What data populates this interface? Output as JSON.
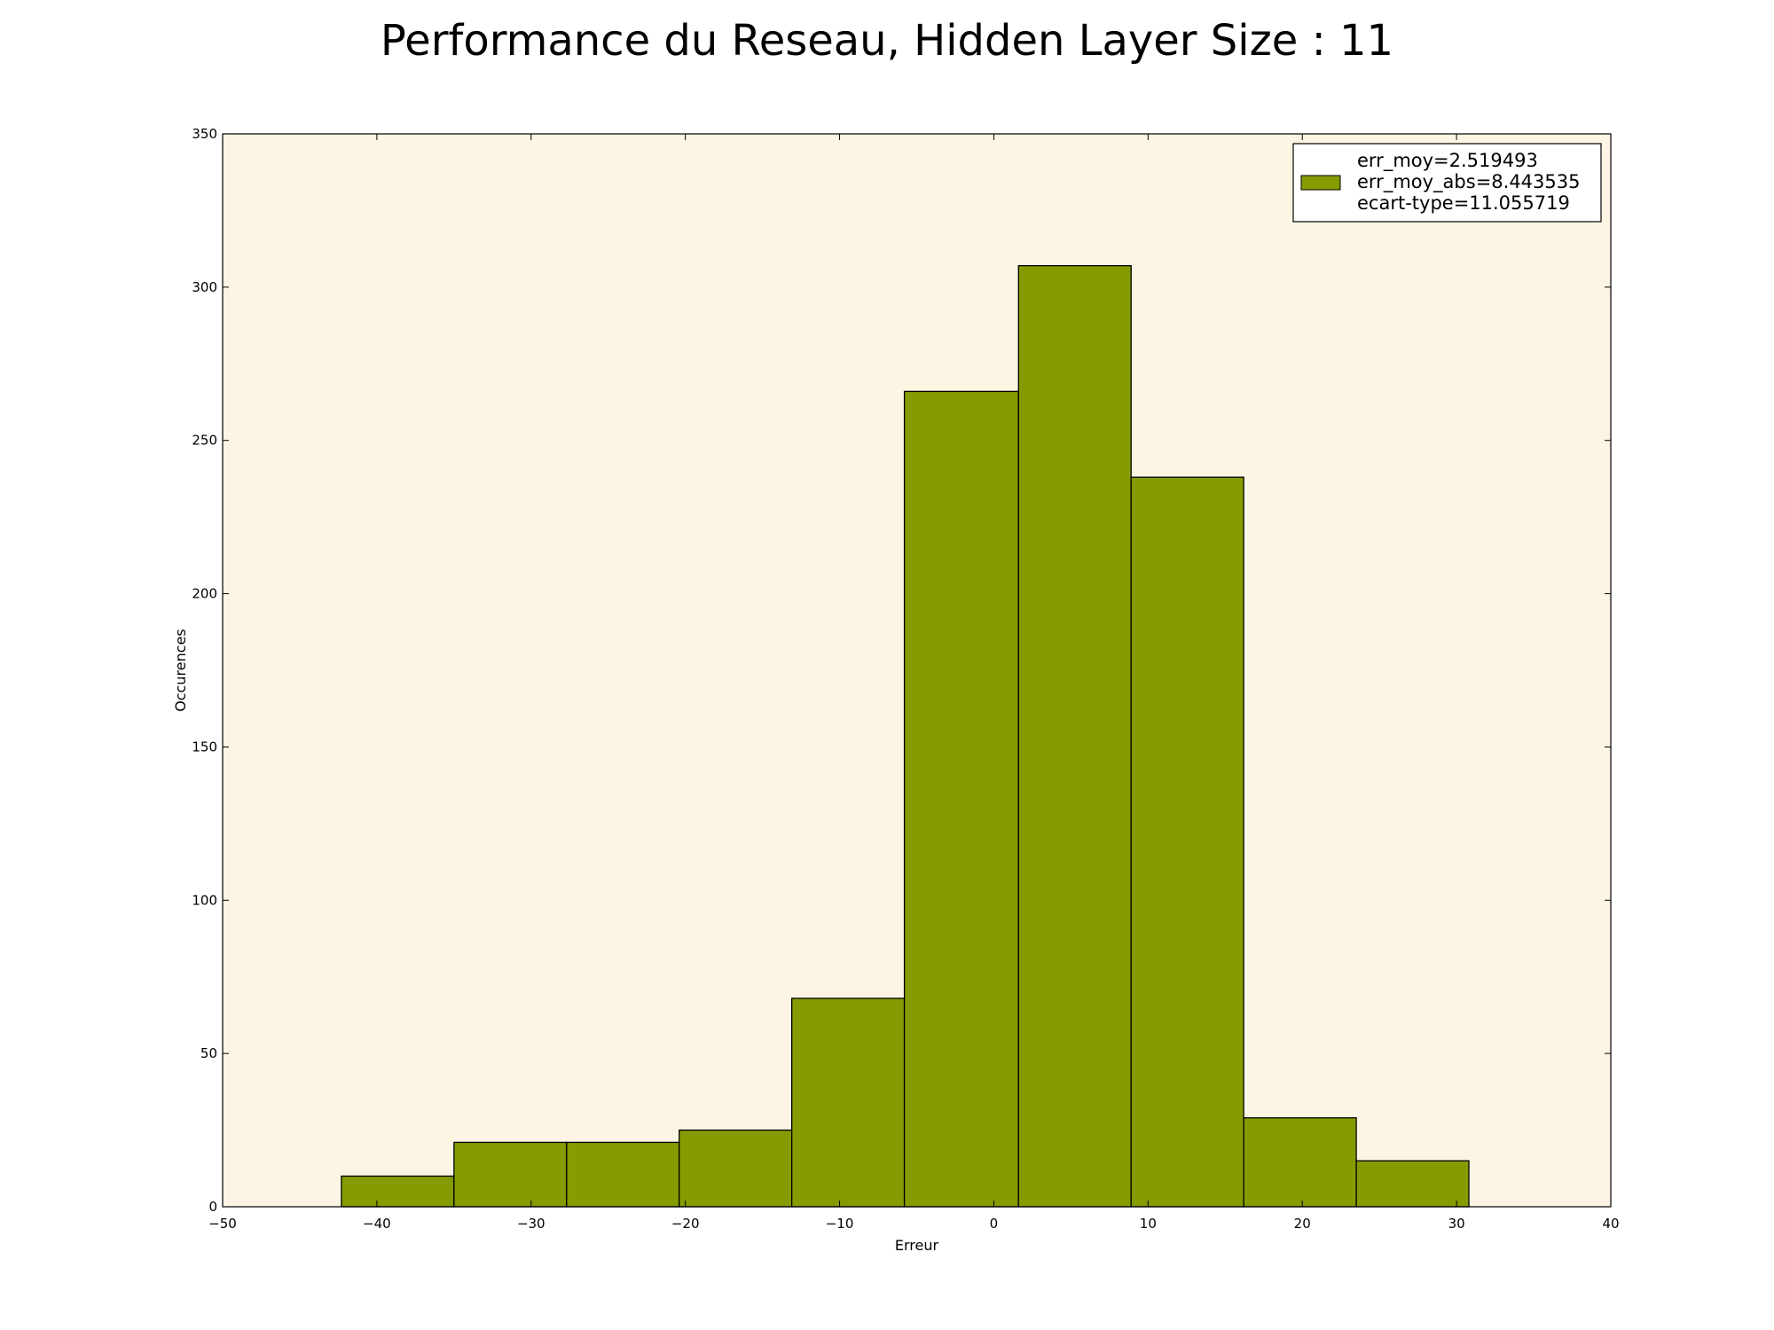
{
  "chart_data": {
    "type": "bar",
    "title": "Performance du Reseau, Hidden Layer Size : 11",
    "xlabel": "Erreur",
    "ylabel": "Occurences",
    "xlim": [
      -50,
      40
    ],
    "ylim": [
      0,
      350
    ],
    "x_ticks": [
      -50,
      -40,
      -30,
      -20,
      -10,
      0,
      10,
      20,
      30,
      40
    ],
    "x_tick_labels": [
      "−50",
      "−40",
      "−30",
      "−20",
      "−10",
      "0",
      "10",
      "20",
      "30",
      "40"
    ],
    "y_ticks": [
      0,
      50,
      100,
      150,
      200,
      250,
      300,
      350
    ],
    "y_tick_labels": [
      "0",
      "50",
      "100",
      "150",
      "200",
      "250",
      "300",
      "350"
    ],
    "bins": [
      {
        "x0": -42.3,
        "x1": -35.0,
        "value": 10
      },
      {
        "x0": -35.0,
        "x1": -27.7,
        "value": 21
      },
      {
        "x0": -27.7,
        "x1": -20.4,
        "value": 21
      },
      {
        "x0": -20.4,
        "x1": -13.1,
        "value": 25
      },
      {
        "x0": -13.1,
        "x1": -5.8,
        "value": 68
      },
      {
        "x0": -5.8,
        "x1": 1.6,
        "value": 266
      },
      {
        "x0": 1.6,
        "x1": 8.9,
        "value": 307
      },
      {
        "x0": 8.9,
        "x1": 16.2,
        "value": 238
      },
      {
        "x0": 16.2,
        "x1": 23.5,
        "value": 29
      },
      {
        "x0": 23.5,
        "x1": 30.8,
        "value": 15
      }
    ],
    "legend": {
      "location": "top-right",
      "lines": [
        "err_moy=2.519493",
        "err_moy_abs=8.443535",
        "ecart-type=11.055719"
      ]
    },
    "grid": false,
    "colors": {
      "bar": "#859b00",
      "plot_background": "#fdf5e3",
      "edge": "#000000"
    }
  }
}
